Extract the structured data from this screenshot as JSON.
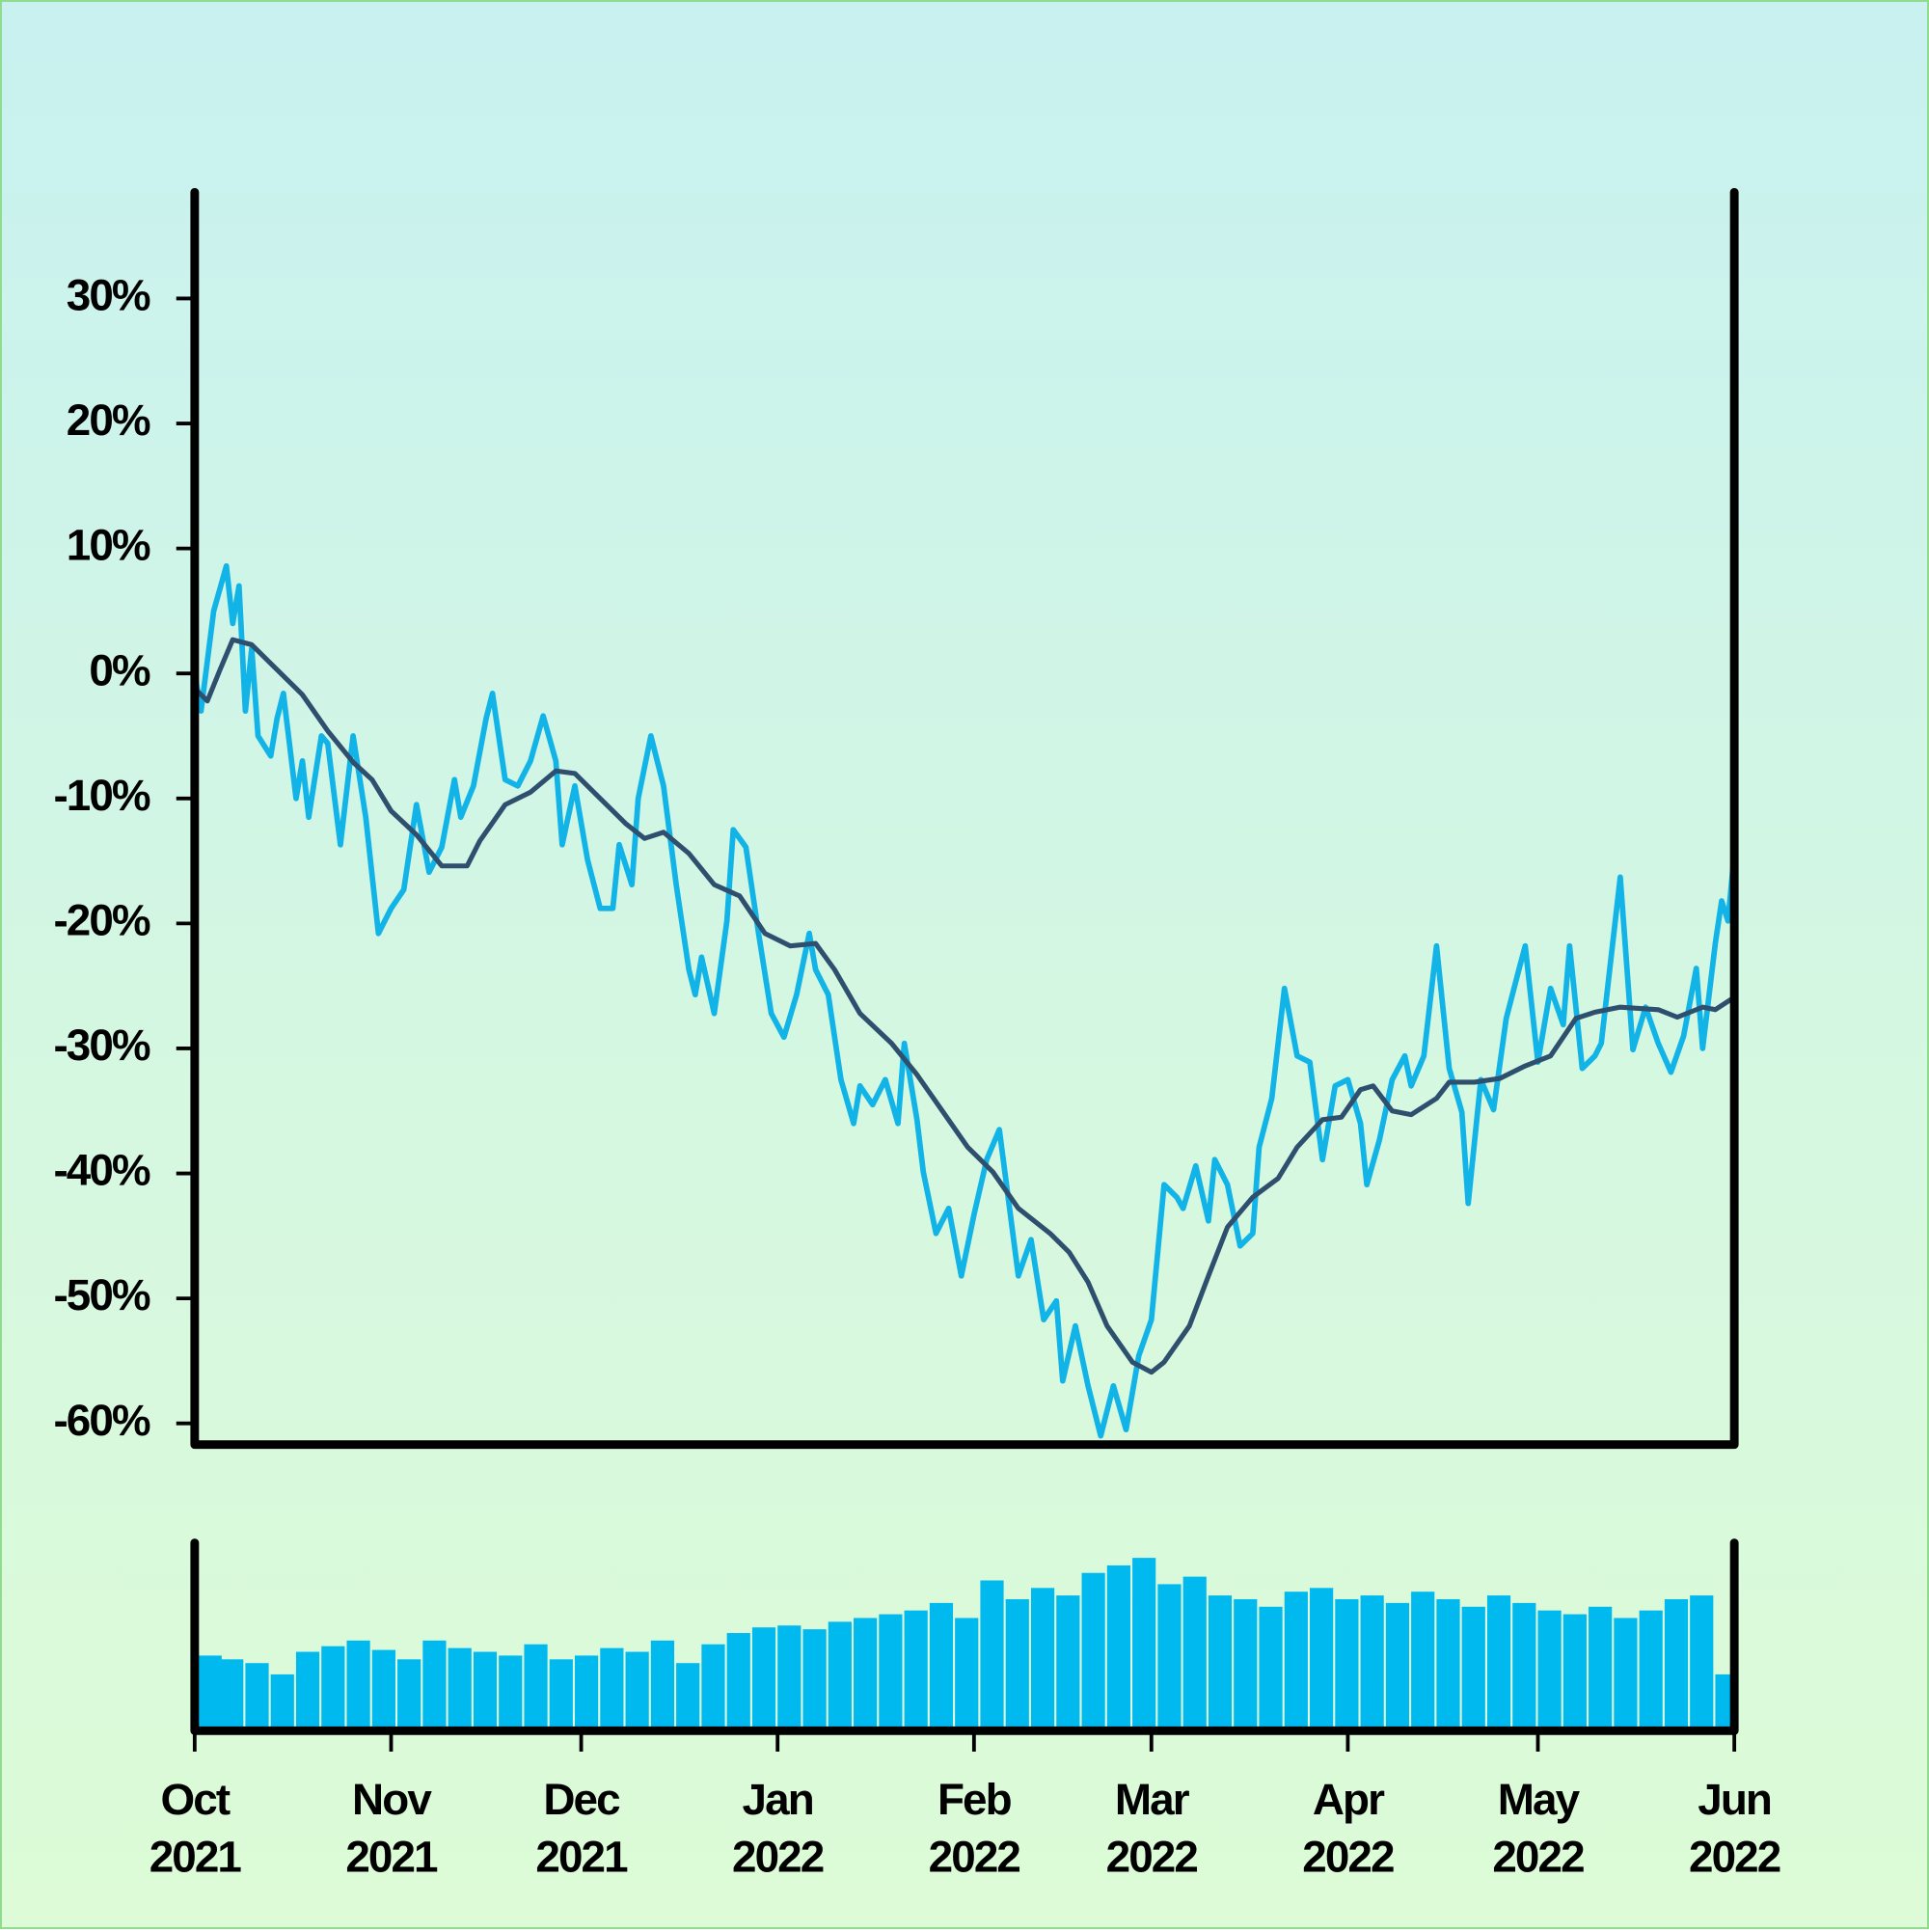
{
  "chart_data": [
    {
      "type": "line",
      "xlim": [
        0,
        243
      ],
      "ylim": [
        -61.7,
        38.5
      ],
      "yticks": [
        {
          "value": -60,
          "label": "-60%"
        },
        {
          "value": -50,
          "label": "-50%"
        },
        {
          "value": -40,
          "label": "-40%"
        },
        {
          "value": -30,
          "label": "-30%"
        },
        {
          "value": -20,
          "label": "-20%"
        },
        {
          "value": -10,
          "label": "-10%"
        },
        {
          "value": 0,
          "label": "0%"
        },
        {
          "value": 10,
          "label": "10%"
        },
        {
          "value": 20,
          "label": "20%"
        },
        {
          "value": 30,
          "label": "30%"
        }
      ],
      "series": [
        {
          "color": "#12b3e6",
          "x": [
            0,
            1,
            3,
            5,
            6,
            7,
            8,
            9,
            10,
            12,
            13,
            14,
            16,
            17,
            18,
            20,
            21,
            23,
            25,
            27,
            29,
            31,
            33,
            35,
            37,
            39,
            41,
            42,
            44,
            46,
            47,
            49,
            51,
            53,
            55,
            57,
            58,
            60,
            62,
            64,
            66,
            67,
            69,
            70,
            72,
            74,
            76,
            78,
            79,
            80,
            82,
            84,
            85,
            87,
            89,
            91,
            93,
            95,
            97,
            98,
            100,
            102,
            104,
            105,
            107,
            109,
            111,
            112,
            114,
            115,
            117,
            119,
            121,
            123,
            125,
            127,
            128,
            130,
            132,
            134,
            136,
            137,
            139,
            141,
            143,
            145,
            147,
            149,
            151,
            153,
            155,
            156,
            158,
            160,
            161,
            163,
            165,
            167,
            168,
            170,
            172,
            174,
            176,
            178,
            180,
            182,
            184,
            185,
            187,
            189,
            191,
            192,
            194,
            196,
            198,
            200,
            201,
            203,
            205,
            207,
            209,
            210,
            212,
            214,
            216,
            217,
            219,
            221,
            222,
            225,
            227,
            229,
            231,
            233,
            235,
            237,
            238,
            240,
            241,
            242,
            243
          ],
          "values": [
            0,
            -3,
            5,
            8.6,
            4,
            7,
            -3,
            2,
            -5,
            -6.6,
            -3.6,
            -1.6,
            -10,
            -7,
            -11.5,
            -5,
            -5.6,
            -13.7,
            -5,
            -11.5,
            -20.8,
            -18.8,
            -17.3,
            -10.5,
            -15.9,
            -13.9,
            -8.5,
            -11.5,
            -9,
            -3.6,
            -1.6,
            -8.5,
            -9,
            -7,
            -3.4,
            -7,
            -13.7,
            -9,
            -14.9,
            -18.8,
            -18.8,
            -13.7,
            -16.9,
            -10,
            -5,
            -9,
            -16.9,
            -23.7,
            -25.7,
            -22.7,
            -27.2,
            -19.8,
            -12.5,
            -13.9,
            -20.8,
            -27.2,
            -29.1,
            -25.7,
            -20.8,
            -23.7,
            -25.7,
            -32.5,
            -36,
            -33,
            -34.5,
            -32.5,
            -36,
            -29.6,
            -35.7,
            -39.9,
            -44.8,
            -42.8,
            -48.2,
            -43.3,
            -38.9,
            -36.5,
            -40.4,
            -48.2,
            -45.3,
            -51.7,
            -50.2,
            -56.6,
            -52.2,
            -57,
            -61,
            -57,
            -60.5,
            -54.6,
            -51.7,
            -40.9,
            -41.9,
            -42.8,
            -39.4,
            -43.8,
            -38.9,
            -40.9,
            -45.8,
            -44.8,
            -37.9,
            -34,
            -25.2,
            -30.6,
            -31.1,
            -38.9,
            -33,
            -32.5,
            -36,
            -40.9,
            -37.3,
            -32.5,
            -30.6,
            -33,
            -30.6,
            -21.8,
            -31.6,
            -35.1,
            -42.4,
            -32.5,
            -34.9,
            -27.6,
            -23.7,
            -21.8,
            -31.1,
            -25.2,
            -28.1,
            -21.8,
            -31.6,
            -30.6,
            -29.6,
            -16.3,
            -30.1,
            -26.7,
            -29.6,
            -31.9,
            -29,
            -23.6,
            -30,
            -21.6,
            -18.2,
            -19.8,
            -14.4
          ]
        },
        {
          "color": "#2e4f6e",
          "x": [
            0,
            2,
            4,
            6,
            9,
            13,
            17,
            21,
            25,
            28,
            31,
            35,
            39,
            43,
            45,
            49,
            53,
            57,
            60,
            64,
            68,
            71,
            74,
            78,
            82,
            86,
            90,
            94,
            98,
            101,
            105,
            110,
            114,
            118,
            122,
            126,
            130,
            135,
            138,
            141,
            144,
            148,
            151,
            153,
            157,
            160,
            163,
            167,
            171,
            174,
            178,
            181,
            184,
            186,
            189,
            192,
            196,
            198,
            202,
            206,
            210,
            214,
            218,
            221,
            225,
            231,
            234,
            238,
            240,
            243
          ],
          "values": [
            -1.2,
            -2.2,
            0.3,
            2.7,
            2.3,
            0.3,
            -1.7,
            -4.6,
            -7.1,
            -8.5,
            -11,
            -12.9,
            -15.4,
            -15.4,
            -13.4,
            -10.5,
            -9.5,
            -7.8,
            -8,
            -10,
            -12,
            -13.2,
            -12.7,
            -14.4,
            -16.9,
            -17.8,
            -20.8,
            -21.8,
            -21.6,
            -23.7,
            -27.2,
            -29.6,
            -32.1,
            -35,
            -37.9,
            -39.9,
            -42.8,
            -44.8,
            -46.3,
            -48.7,
            -52.2,
            -55.1,
            -55.9,
            -55.1,
            -52.2,
            -48.2,
            -44.3,
            -41.9,
            -40.4,
            -37.9,
            -35.7,
            -35.5,
            -33.3,
            -33,
            -35,
            -35.3,
            -34,
            -32.7,
            -32.7,
            -32.4,
            -31.4,
            -30.6,
            -27.6,
            -27.1,
            -26.7,
            -26.9,
            -27.5,
            -26.7,
            -26.9,
            -25.9
          ]
        }
      ]
    },
    {
      "type": "bar",
      "color": "#00b9ef",
      "xlim": [
        0,
        243
      ],
      "ylim": [
        0,
        100
      ],
      "xticks": [
        {
          "value": 0,
          "label": "Oct 2021"
        },
        {
          "value": 31,
          "label": "Nov 2021"
        },
        {
          "value": 61,
          "label": "Dec 2021"
        },
        {
          "value": 92,
          "label": "Jan 2022"
        },
        {
          "value": 123,
          "label": "Feb 2022"
        },
        {
          "value": 151,
          "label": "Mar 2022"
        },
        {
          "value": 182,
          "label": "Apr 2022"
        },
        {
          "value": 212,
          "label": "May 2022"
        },
        {
          "value": 243,
          "label": "Jun 2022"
        }
      ],
      "x": [
        0,
        4,
        8,
        12,
        16,
        20,
        24,
        28,
        32,
        36,
        40,
        44,
        48,
        52,
        56,
        60,
        64,
        68,
        72,
        76,
        80,
        84,
        88,
        92,
        96,
        100,
        104,
        108,
        112,
        116,
        120,
        124,
        128,
        132,
        136,
        140,
        144,
        148,
        152,
        156,
        160,
        164,
        168,
        172,
        176,
        180,
        184,
        188,
        192,
        196,
        200,
        204,
        208,
        212,
        216,
        220,
        224,
        228,
        232,
        236,
        240
      ],
      "values": [
        40,
        38,
        36,
        30,
        42,
        45,
        48,
        43,
        38,
        48,
        44,
        42,
        40,
        46,
        38,
        40,
        44,
        42,
        48,
        36,
        46,
        52,
        55,
        56,
        54,
        58,
        60,
        62,
        64,
        68,
        60,
        80,
        70,
        76,
        72,
        84,
        88,
        92,
        78,
        82,
        72,
        70,
        66,
        74,
        76,
        70,
        72,
        68,
        74,
        70,
        66,
        72,
        68,
        64,
        62,
        66,
        60,
        64,
        70,
        72,
        30
      ]
    }
  ]
}
